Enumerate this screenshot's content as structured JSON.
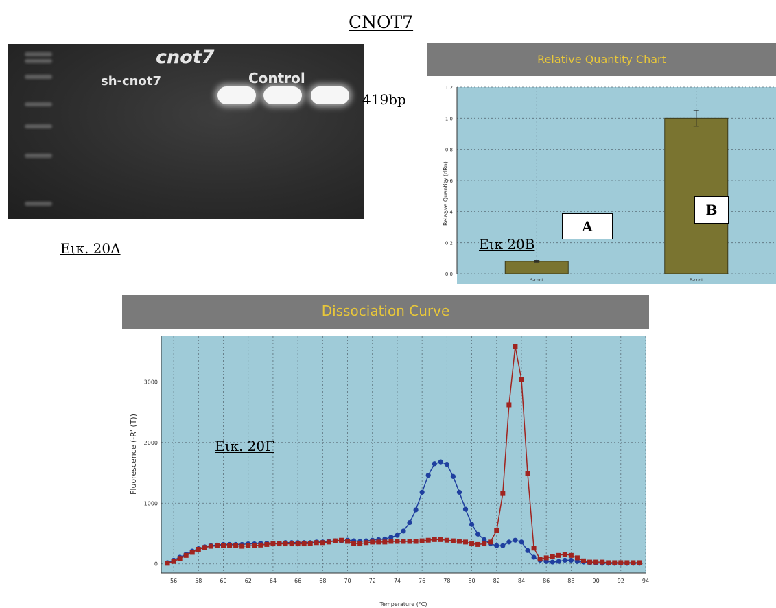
{
  "page_title": "CNOT7",
  "gel": {
    "gene_label": "cnot7",
    "sh_label": "sh-cnot7",
    "control_label": "Control",
    "band_size": "419bp",
    "figure_label": "Εικ. 20Α"
  },
  "chart_data": [
    {
      "type": "bar",
      "title": "Relative Quantity Chart",
      "ylabel": "Relative Quantity (dRn)",
      "xlabel": "",
      "categories": [
        "S-cnot",
        "B-cnot"
      ],
      "values": [
        0.08,
        1.0
      ],
      "error": [
        0.005,
        0.05
      ],
      "ylim": [
        0,
        1.2
      ],
      "yticks": [
        0.0,
        0.2,
        0.4,
        0.6,
        0.8,
        1.0,
        1.2
      ],
      "bar_labels": [
        "A",
        "B"
      ],
      "figure_label": "Εικ 20Β",
      "grid": true
    },
    {
      "type": "line",
      "title": "Dissociation Curve",
      "xlabel": "Temperature (°C)",
      "ylabel": "Fluorescence (-R' (T))",
      "xlim": [
        55,
        94
      ],
      "ylim": [
        -150,
        3750
      ],
      "xticks": [
        56,
        58,
        60,
        62,
        64,
        66,
        68,
        70,
        72,
        74,
        76,
        78,
        80,
        82,
        84,
        86,
        88,
        90,
        92,
        94
      ],
      "yticks": [
        0,
        1000,
        2000,
        3000
      ],
      "figure_label": "Εικ. 20Γ",
      "grid": true,
      "series": [
        {
          "color": "#1f3f9f",
          "x": [
            55.5,
            56,
            56.5,
            57,
            57.5,
            58,
            58.5,
            59,
            59.5,
            60,
            60.5,
            61,
            61.5,
            62,
            62.5,
            63,
            63.5,
            64,
            64.5,
            65,
            65.5,
            66,
            66.5,
            67,
            67.5,
            68,
            68.5,
            69,
            69.5,
            70,
            70.5,
            71,
            71.5,
            72,
            72.5,
            73,
            73.5,
            74,
            74.5,
            75,
            75.5,
            76,
            76.5,
            77,
            77.5,
            78,
            78.5,
            79,
            79.5,
            80,
            80.5,
            81,
            81.5,
            82,
            82.5,
            83,
            83.5,
            84,
            84.5,
            85,
            85.5,
            86,
            86.5,
            87,
            87.5,
            88,
            88.5,
            89,
            89.5,
            90,
            90.5,
            91,
            91.5,
            92,
            92.5,
            93,
            93.5
          ],
          "y": [
            20,
            60,
            110,
            160,
            210,
            250,
            280,
            300,
            310,
            320,
            320,
            320,
            320,
            330,
            330,
            340,
            340,
            340,
            340,
            350,
            350,
            350,
            350,
            350,
            360,
            360,
            370,
            380,
            380,
            390,
            380,
            370,
            380,
            390,
            400,
            410,
            440,
            470,
            540,
            680,
            890,
            1180,
            1460,
            1650,
            1680,
            1640,
            1440,
            1180,
            900,
            650,
            490,
            400,
            330,
            300,
            300,
            360,
            390,
            360,
            220,
            110,
            60,
            40,
            30,
            40,
            60,
            60,
            40,
            30,
            20,
            15,
            10,
            10,
            10,
            10,
            10,
            10,
            10
          ]
        },
        {
          "color": "#a0241f",
          "x": [
            55.5,
            56,
            56.5,
            57,
            57.5,
            58,
            58.5,
            59,
            59.5,
            60,
            60.5,
            61,
            61.5,
            62,
            62.5,
            63,
            63.5,
            64,
            64.5,
            65,
            65.5,
            66,
            66.5,
            67,
            67.5,
            68,
            68.5,
            69,
            69.5,
            70,
            70.5,
            71,
            71.5,
            72,
            72.5,
            73,
            73.5,
            74,
            74.5,
            75,
            75.5,
            76,
            76.5,
            77,
            77.5,
            78,
            78.5,
            79,
            79.5,
            80,
            80.5,
            81,
            81.5,
            82,
            82.5,
            83,
            83.5,
            84,
            84.5,
            85,
            85.5,
            86,
            86.5,
            87,
            87.5,
            88,
            88.5,
            89,
            89.5,
            90,
            90.5,
            91,
            91.5,
            92,
            92.5,
            93,
            93.5
          ],
          "y": [
            10,
            40,
            90,
            140,
            190,
            240,
            270,
            290,
            300,
            300,
            300,
            300,
            290,
            300,
            300,
            310,
            320,
            330,
            330,
            330,
            330,
            330,
            330,
            340,
            350,
            350,
            360,
            380,
            390,
            370,
            340,
            330,
            350,
            360,
            360,
            360,
            370,
            370,
            370,
            370,
            370,
            380,
            390,
            400,
            400,
            390,
            380,
            370,
            360,
            330,
            320,
            330,
            360,
            550,
            1160,
            2620,
            3580,
            3040,
            1490,
            260,
            80,
            100,
            120,
            140,
            160,
            140,
            100,
            50,
            30,
            30,
            30,
            20,
            20,
            20,
            20,
            20,
            20
          ]
        }
      ]
    }
  ]
}
